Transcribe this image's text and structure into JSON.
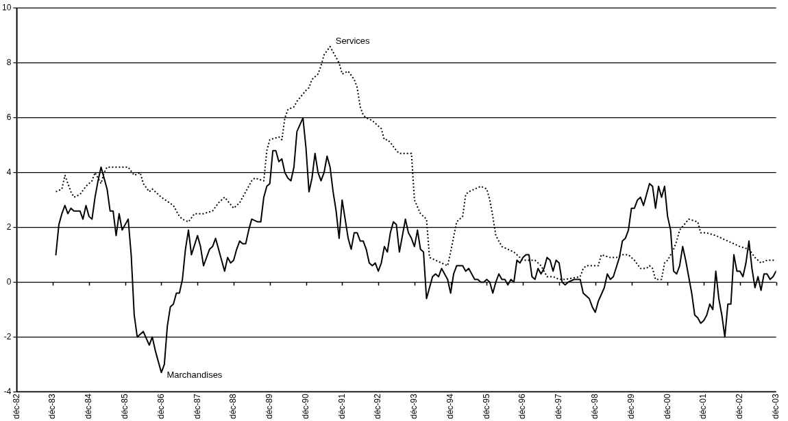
{
  "chart_data": {
    "type": "line",
    "grid": "y",
    "legend": false,
    "marker": "none",
    "xlim": [
      "1982-12",
      "2003-12"
    ],
    "xticks": [
      {
        "value": "1982-12",
        "label": "déc-82"
      },
      {
        "value": "1983-12",
        "label": "déc-83"
      },
      {
        "value": "1984-12",
        "label": "déc-84"
      },
      {
        "value": "1985-12",
        "label": "déc-85"
      },
      {
        "value": "1986-12",
        "label": "déc-86"
      },
      {
        "value": "1987-12",
        "label": "déc-87"
      },
      {
        "value": "1988-12",
        "label": "déc-88"
      },
      {
        "value": "1989-12",
        "label": "déc-89"
      },
      {
        "value": "1990-12",
        "label": "déc-90"
      },
      {
        "value": "1991-12",
        "label": "déc-91"
      },
      {
        "value": "1992-12",
        "label": "déc-92"
      },
      {
        "value": "1993-12",
        "label": "déc-93"
      },
      {
        "value": "1994-12",
        "label": "déc-94"
      },
      {
        "value": "1995-12",
        "label": "déc-95"
      },
      {
        "value": "1996-12",
        "label": "déc-96"
      },
      {
        "value": "1997-12",
        "label": "déc-97"
      },
      {
        "value": "1998-12",
        "label": "déc-98"
      },
      {
        "value": "1999-12",
        "label": "déc-99"
      },
      {
        "value": "2000-12",
        "label": "déc-00"
      },
      {
        "value": "2001-12",
        "label": "déc-01"
      },
      {
        "value": "2002-12",
        "label": "déc-02"
      },
      {
        "value": "2003-12",
        "label": "déc-03"
      }
    ],
    "ylim": [
      -4,
      10
    ],
    "yticks": [
      -4,
      -2,
      0,
      2,
      4,
      6,
      8,
      10
    ],
    "series": [
      {
        "name": "Marchandises",
        "color": "#000000",
        "line_style": "solid",
        "x": [
          "1984-01",
          "1984-02",
          "1984-03",
          "1984-04",
          "1984-05",
          "1984-06",
          "1984-07",
          "1984-09",
          "1984-10",
          "1984-11",
          "1984-12",
          "1985-01",
          "1985-02",
          "1985-03",
          "1985-04",
          "1985-05",
          "1985-06",
          "1985-07",
          "1985-08",
          "1985-09",
          "1985-10",
          "1985-11",
          "1986-01",
          "1986-02",
          "1986-03",
          "1986-04",
          "1986-05",
          "1986-06",
          "1986-08",
          "1986-09",
          "1986-10",
          "1986-12",
          "1987-01",
          "1987-02",
          "1987-03",
          "1987-04",
          "1987-05",
          "1987-06",
          "1987-07",
          "1987-08",
          "1987-09",
          "1987-10",
          "1987-12",
          "1988-01",
          "1988-02",
          "1988-03",
          "1988-04",
          "1988-05",
          "1988-06",
          "1988-09",
          "1988-10",
          "1988-11",
          "1988-12",
          "1989-01",
          "1989-02",
          "1989-03",
          "1989-04",
          "1989-05",
          "1989-06",
          "1989-08",
          "1989-09",
          "1989-10",
          "1989-11",
          "1989-12",
          "1990-01",
          "1990-02",
          "1990-03",
          "1990-04",
          "1990-05",
          "1990-06",
          "1990-07",
          "1990-08",
          "1990-09",
          "1990-11",
          "1990-12",
          "1991-01",
          "1991-02",
          "1991-03",
          "1991-04",
          "1991-05",
          "1991-06",
          "1991-07",
          "1991-08",
          "1991-09",
          "1991-10",
          "1991-11",
          "1991-12",
          "1992-02",
          "1992-03",
          "1992-04",
          "1992-05",
          "1992-06",
          "1992-07",
          "1992-08",
          "1992-09",
          "1992-10",
          "1992-11",
          "1992-12",
          "1993-01",
          "1993-02",
          "1993-03",
          "1993-04",
          "1993-05",
          "1993-06",
          "1993-07",
          "1993-08",
          "1993-09",
          "1993-10",
          "1993-11",
          "1993-12",
          "1994-01",
          "1994-02",
          "1994-03",
          "1994-04",
          "1994-05",
          "1994-06",
          "1994-07",
          "1994-08",
          "1994-09",
          "1994-11",
          "1994-12",
          "1995-01",
          "1995-02",
          "1995-03",
          "1995-04",
          "1995-05",
          "1995-06",
          "1995-07",
          "1995-08",
          "1995-09",
          "1995-10",
          "1995-11",
          "1995-12",
          "1996-01",
          "1996-02",
          "1996-03",
          "1996-04",
          "1996-05",
          "1996-06",
          "1996-07",
          "1996-08",
          "1996-09",
          "1996-10",
          "1996-11",
          "1996-12",
          "1997-01",
          "1997-02",
          "1997-03",
          "1997-04",
          "1997-05",
          "1997-06",
          "1997-07",
          "1997-08",
          "1997-09",
          "1997-10",
          "1997-11",
          "1997-12",
          "1998-01",
          "1998-02",
          "1998-03",
          "1998-05",
          "1998-06",
          "1998-07",
          "1998-08",
          "1998-10",
          "1998-11",
          "1998-12",
          "1999-01",
          "1999-03",
          "1999-04",
          "1999-05",
          "1999-06",
          "1999-08",
          "1999-09",
          "1999-10",
          "1999-11",
          "1999-12",
          "2000-01",
          "2000-02",
          "2000-03",
          "2000-04",
          "2000-06",
          "2000-07",
          "2000-08",
          "2000-09",
          "2000-10",
          "2000-11",
          "2000-12",
          "2001-01",
          "2001-02",
          "2001-03",
          "2001-04",
          "2001-05",
          "2001-06",
          "2001-07",
          "2001-08",
          "2001-09",
          "2001-10",
          "2001-11",
          "2001-12",
          "2002-01",
          "2002-02",
          "2002-03",
          "2002-04",
          "2002-05",
          "2002-06",
          "2002-07",
          "2002-08",
          "2002-09",
          "2002-10",
          "2002-11",
          "2002-12",
          "2003-01",
          "2003-02",
          "2003-03",
          "2003-04",
          "2003-05",
          "2003-06",
          "2003-07",
          "2003-08",
          "2003-09",
          "2003-10",
          "2003-11",
          "2003-12"
        ],
        "values": [
          1.0,
          2.1,
          2.5,
          2.8,
          2.5,
          2.7,
          2.6,
          2.6,
          2.3,
          2.8,
          2.4,
          2.3,
          3.1,
          3.7,
          4.2,
          3.8,
          3.4,
          2.6,
          2.6,
          1.7,
          2.5,
          1.9,
          2.3,
          1.0,
          -1.2,
          -2.0,
          -1.9,
          -1.8,
          -2.3,
          -2.0,
          -2.5,
          -3.3,
          -3.0,
          -1.6,
          -0.9,
          -0.8,
          -0.4,
          -0.4,
          0.1,
          1.2,
          1.9,
          1.0,
          1.7,
          1.3,
          0.6,
          0.9,
          1.2,
          1.3,
          1.6,
          0.4,
          0.9,
          0.7,
          0.8,
          1.2,
          1.5,
          1.4,
          1.4,
          1.9,
          2.3,
          2.2,
          2.2,
          3.1,
          3.5,
          3.6,
          4.8,
          4.8,
          4.4,
          4.5,
          4.0,
          3.8,
          3.7,
          4.2,
          5.5,
          6.0,
          4.9,
          3.3,
          3.8,
          4.7,
          4.0,
          3.7,
          4.0,
          4.6,
          4.2,
          3.3,
          2.6,
          1.6,
          3.0,
          1.6,
          1.2,
          1.8,
          1.8,
          1.5,
          1.5,
          1.2,
          0.7,
          0.6,
          0.7,
          0.4,
          0.7,
          1.3,
          1.1,
          1.8,
          2.2,
          2.1,
          1.1,
          1.7,
          2.3,
          1.8,
          1.6,
          1.3,
          1.9,
          1.2,
          1.1,
          -0.6,
          -0.2,
          0.2,
          0.3,
          0.2,
          0.5,
          0.1,
          -0.4,
          0.3,
          0.6,
          0.6,
          0.6,
          0.4,
          0.5,
          0.3,
          0.1,
          0.1,
          0.0,
          0.0,
          0.1,
          0.0,
          -0.4,
          0.0,
          0.3,
          0.1,
          0.1,
          -0.1,
          0.1,
          0.0,
          0.8,
          0.7,
          0.9,
          1.0,
          1.0,
          0.2,
          0.1,
          0.5,
          0.3,
          0.5,
          0.9,
          0.8,
          0.4,
          0.8,
          0.7,
          0.0,
          -0.1,
          0.0,
          0.1,
          0.1,
          0.1,
          -0.4,
          -0.6,
          -0.9,
          -1.1,
          -0.7,
          -0.2,
          0.3,
          0.1,
          0.2,
          0.9,
          1.5,
          1.6,
          1.9,
          2.7,
          2.7,
          3.0,
          3.1,
          2.8,
          3.6,
          3.5,
          2.7,
          3.5,
          3.1,
          3.5,
          2.4,
          1.9,
          0.4,
          0.3,
          0.6,
          1.3,
          0.8,
          0.2,
          -0.4,
          -1.2,
          -1.3,
          -1.5,
          -1.4,
          -1.2,
          -0.8,
          -1.0,
          0.4,
          -0.6,
          -1.2,
          -2.0,
          -0.8,
          -0.8,
          1.0,
          0.4,
          0.4,
          0.2,
          0.7,
          1.5,
          0.5,
          -0.2,
          0.2,
          -0.3,
          0.3,
          0.3,
          0.1,
          0.2,
          0.4
        ]
      },
      {
        "name": "Services",
        "color": "#000000",
        "line_style": "dotted",
        "x": [
          "1984-01",
          "1984-03",
          "1984-04",
          "1984-06",
          "1984-07",
          "1984-09",
          "1984-11",
          "1985-01",
          "1985-02",
          "1985-04",
          "1985-05",
          "1985-06",
          "1985-10",
          "1986-01",
          "1986-03",
          "1986-05",
          "1986-06",
          "1986-08",
          "1986-09",
          "1986-12",
          "1987-04",
          "1987-06",
          "1987-07",
          "1987-09",
          "1987-11",
          "1988-02",
          "1988-05",
          "1988-07",
          "1988-09",
          "1988-12",
          "1989-02",
          "1989-04",
          "1989-06",
          "1989-07",
          "1989-10",
          "1989-11",
          "1989-12",
          "1990-03",
          "1990-04",
          "1990-05",
          "1990-06",
          "1990-08",
          "1990-09",
          "1990-12",
          "1991-01",
          "1991-02",
          "1991-04",
          "1991-05",
          "1991-06",
          "1991-08",
          "1991-09",
          "1991-11",
          "1991-12",
          "1992-02",
          "1992-04",
          "1992-05",
          "1992-06",
          "1992-07",
          "1992-08",
          "1992-10",
          "1993-01",
          "1993-02",
          "1993-03",
          "1993-04",
          "1993-06",
          "1993-07",
          "1993-11",
          "1993-12",
          "1994-02",
          "1994-04",
          "1994-05",
          "1994-07",
          "1994-09",
          "1994-11",
          "1994-12",
          "1995-02",
          "1995-04",
          "1995-05",
          "1995-06",
          "1995-10",
          "1995-12",
          "1996-01",
          "1996-02",
          "1996-03",
          "1996-05",
          "1996-07",
          "1996-09",
          "1996-12",
          "1997-04",
          "1997-06",
          "1997-08",
          "1997-10",
          "1997-12",
          "1998-02",
          "1998-07",
          "1998-08",
          "1998-09",
          "1999-01",
          "1999-02",
          "1999-05",
          "1999-07",
          "1999-09",
          "1999-11",
          "2000-01",
          "2000-03",
          "2000-05",
          "2000-06",
          "2000-07",
          "2000-08",
          "2000-10",
          "2000-11",
          "2000-12",
          "2001-02",
          "2001-03",
          "2001-04",
          "2001-07",
          "2001-10",
          "2001-11",
          "2002-01",
          "2002-04",
          "2002-06",
          "2002-08",
          "2002-12",
          "2003-03",
          "2003-05",
          "2003-07",
          "2003-09",
          "2003-12"
        ],
        "values": [
          3.3,
          3.4,
          3.9,
          3.3,
          3.1,
          3.2,
          3.5,
          3.7,
          4.0,
          3.6,
          4.0,
          4.2,
          4.2,
          4.2,
          3.9,
          4.0,
          3.6,
          3.3,
          3.4,
          3.1,
          2.8,
          2.4,
          2.3,
          2.2,
          2.5,
          2.5,
          2.6,
          2.9,
          3.1,
          2.7,
          2.9,
          3.3,
          3.7,
          3.8,
          3.7,
          4.8,
          5.2,
          5.3,
          5.2,
          6.0,
          6.3,
          6.4,
          6.6,
          7.0,
          7.1,
          7.4,
          7.6,
          7.9,
          8.3,
          8.6,
          8.4,
          8.0,
          7.6,
          7.7,
          7.4,
          7.1,
          6.4,
          6.1,
          6.0,
          5.9,
          5.6,
          5.2,
          5.2,
          5.1,
          4.8,
          4.7,
          4.7,
          3.0,
          2.5,
          2.3,
          0.9,
          0.8,
          0.7,
          0.6,
          1.1,
          2.2,
          2.4,
          3.2,
          3.3,
          3.5,
          3.4,
          3.0,
          2.4,
          1.7,
          1.3,
          1.2,
          1.1,
          0.8,
          0.8,
          0.6,
          0.2,
          0.2,
          0.1,
          0.1,
          0.2,
          0.5,
          0.6,
          0.6,
          1.0,
          0.9,
          0.9,
          1.0,
          1.0,
          0.8,
          0.5,
          0.5,
          0.6,
          0.5,
          0.1,
          0.1,
          0.7,
          0.8,
          1.2,
          1.5,
          1.9,
          2.3,
          2.2,
          1.8,
          1.8,
          1.7,
          1.6,
          1.5,
          1.3,
          1.2,
          0.9,
          0.7,
          0.8,
          0.8
        ]
      }
    ]
  }
}
